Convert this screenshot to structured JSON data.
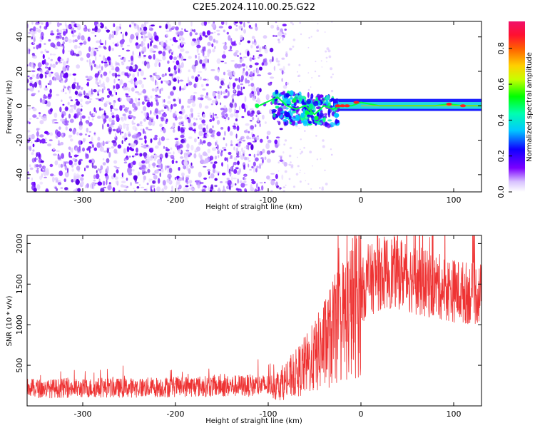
{
  "title": "C2E5.2024.110.00.25.G22",
  "colors": {
    "axis": "#000000",
    "snr_line": "#ee3333",
    "spectrum_low": "#e8d4ff",
    "spectrum_mid": "#7b00ff",
    "spectrum_peak": "#ff2020"
  },
  "chart_data": [
    {
      "type": "heatmap",
      "xlabel": "Height of straight line (km)",
      "ylabel": "Frequency (Hz)",
      "xlim": [
        -360,
        130
      ],
      "ylim": [
        -50,
        49
      ],
      "xticks": [
        -300,
        -200,
        -100,
        0,
        100
      ],
      "yticks": [
        -40,
        -20,
        0,
        20,
        40
      ],
      "xtick_labels": [
        "-300",
        "-200",
        "-100",
        "0",
        "100"
      ],
      "ytick_labels": [
        "-40",
        "-20",
        "0",
        "20",
        "40"
      ],
      "noise_region_x": [
        -360,
        -80
      ],
      "signal_trace": {
        "x": [
          -110,
          -90,
          -80,
          -70,
          -60,
          -50,
          -40,
          -30,
          -20,
          -10,
          0,
          20,
          50,
          80,
          95,
          110,
          130
        ],
        "frequency": [
          0,
          5,
          0,
          -2,
          0,
          -5,
          0,
          -2,
          0,
          0,
          2,
          0,
          0,
          0,
          1,
          0,
          0
        ]
      },
      "colorbar": {
        "label": "Normalized spectral amplitude",
        "range": [
          0,
          0.95
        ],
        "ticks": [
          0.0,
          0.2,
          0.4,
          0.6,
          0.8
        ],
        "tick_labels": [
          "0.0",
          "0.2",
          "0.4",
          "0.6",
          "0.8"
        ]
      }
    },
    {
      "type": "line",
      "xlabel": "Height of straight line (km)",
      "ylabel": "SNR (10 * v/v)",
      "xlim": [
        -360,
        130
      ],
      "ylim": [
        0,
        2100
      ],
      "xticks": [
        -300,
        -200,
        -100,
        0,
        100
      ],
      "yticks": [
        500,
        1000,
        1500,
        2000
      ],
      "xtick_labels": [
        "-300",
        "-200",
        "-100",
        "0",
        "100"
      ],
      "ytick_labels": [
        "500",
        "1000",
        "1500",
        "2000"
      ],
      "series": [
        {
          "x": [
            -360,
            -340,
            -320,
            -300,
            -280,
            -260,
            -240,
            -220,
            -200,
            -180,
            -160,
            -140,
            -120,
            -100,
            -90,
            -80,
            -70,
            -60,
            -50,
            -40,
            -30,
            -20,
            -10,
            0,
            10,
            20,
            30,
            40,
            50,
            60,
            70,
            80,
            90,
            100,
            110,
            120,
            130
          ],
          "values": [
            220,
            210,
            220,
            215,
            225,
            220,
            225,
            230,
            235,
            240,
            240,
            245,
            250,
            250,
            260,
            300,
            400,
            500,
            600,
            750,
            900,
            1050,
            1200,
            1400,
            1550,
            1620,
            1650,
            1650,
            1600,
            1550,
            1500,
            1480,
            1450,
            1420,
            1400,
            1380,
            1380
          ]
        }
      ]
    }
  ]
}
